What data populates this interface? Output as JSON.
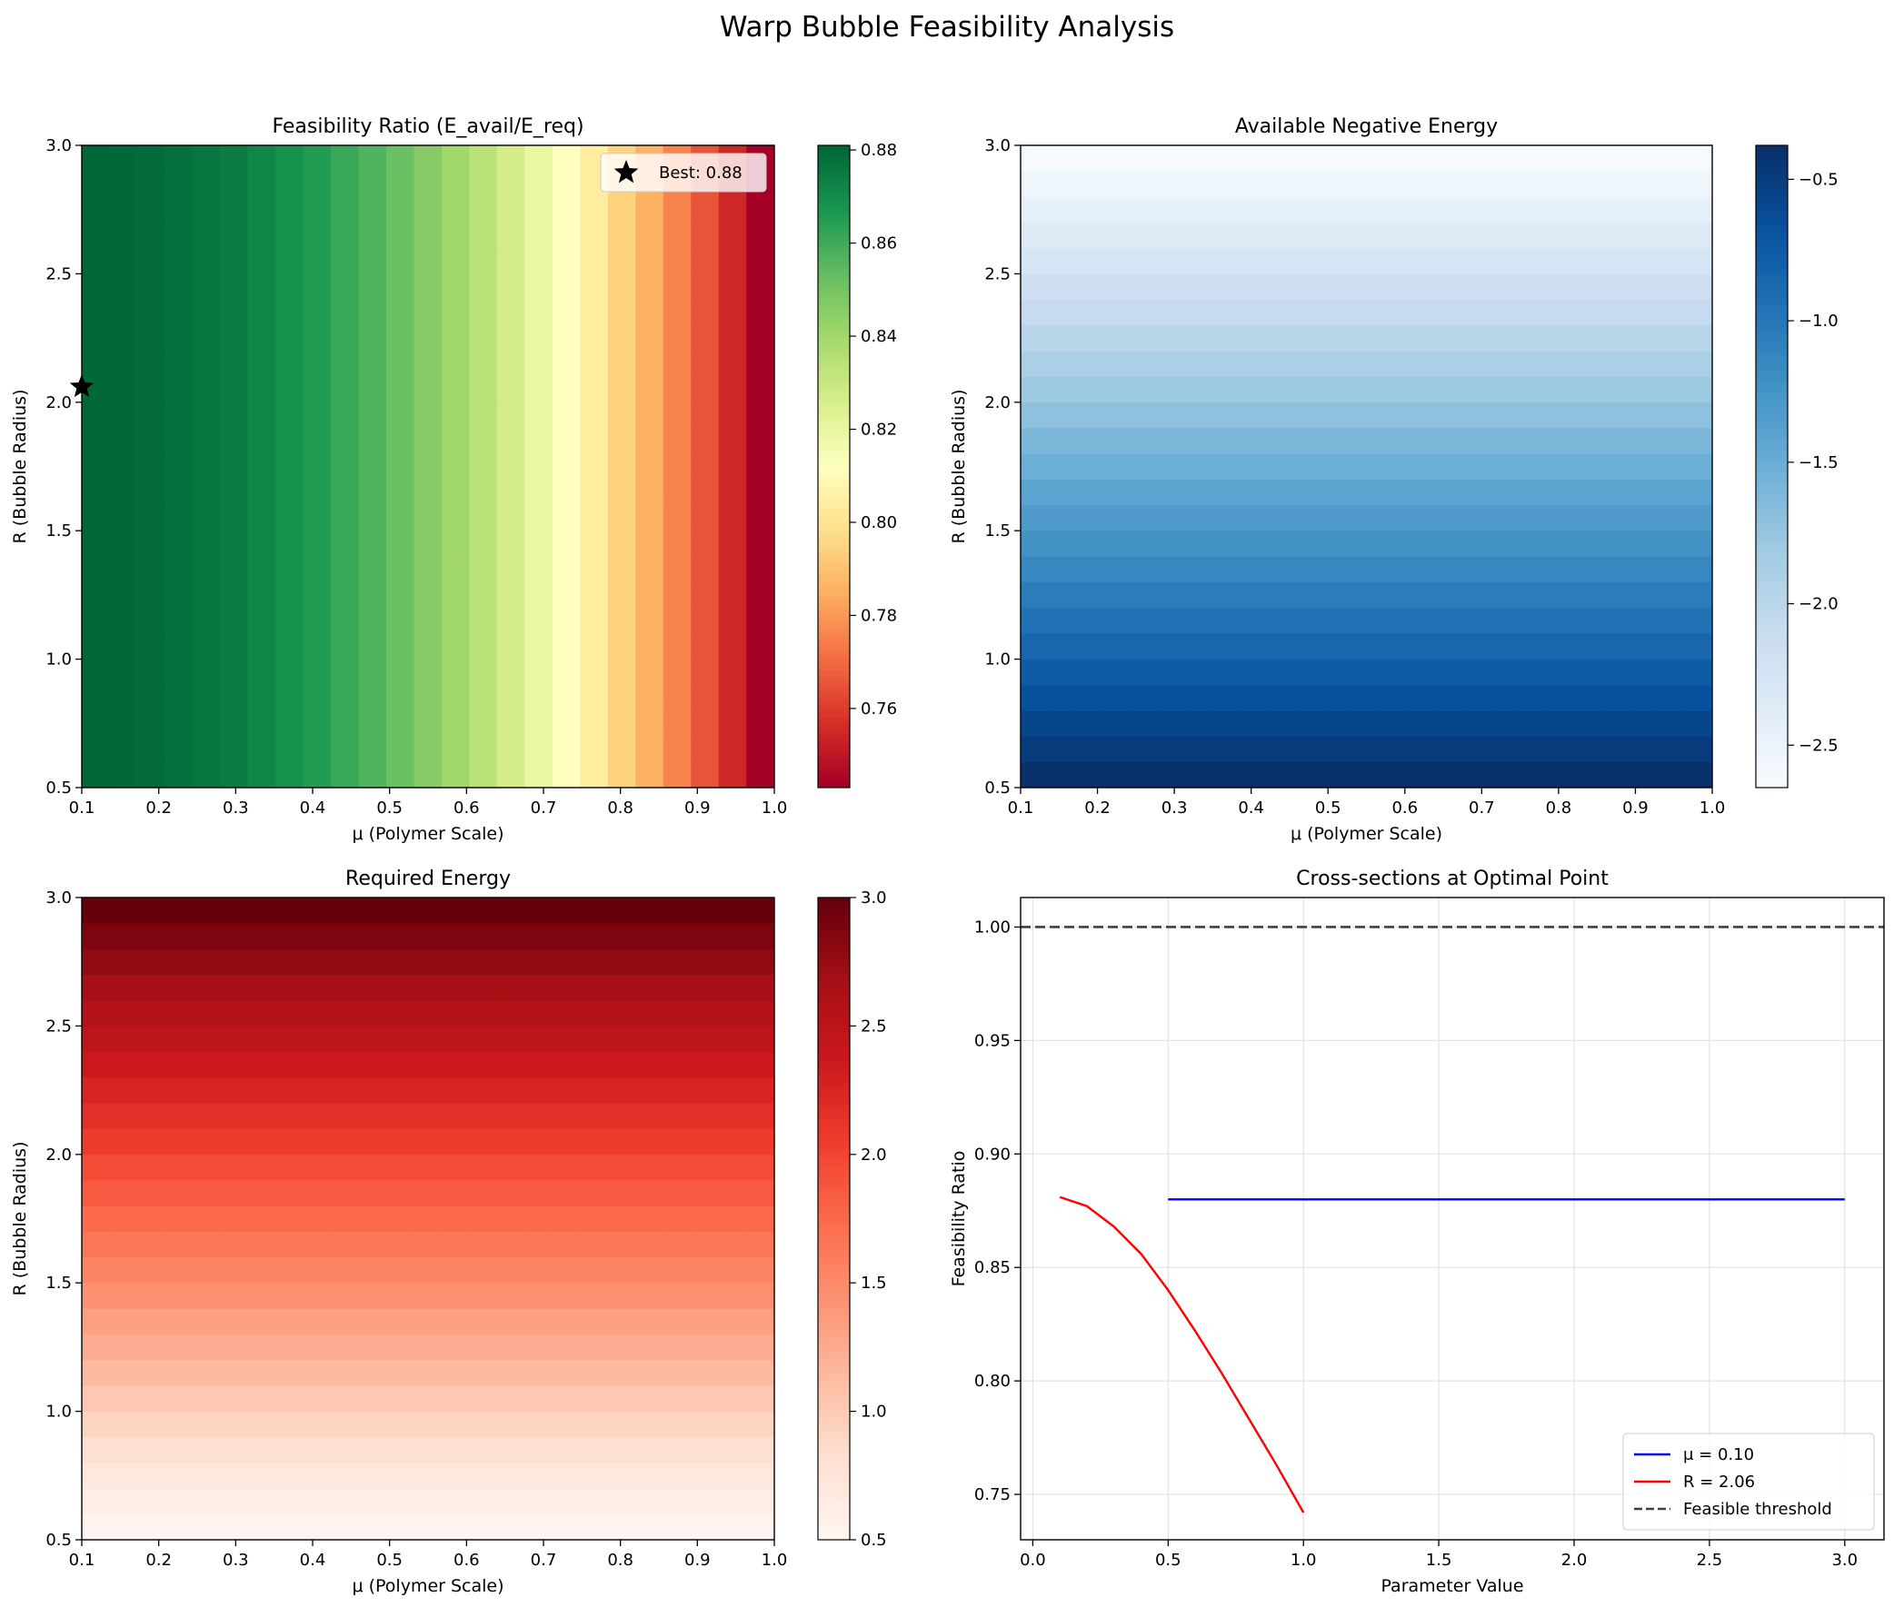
{
  "figure": {
    "suptitle": "Warp Bubble Feasibility Analysis"
  },
  "chart_data": [
    {
      "type": "heatmap",
      "title": "Feasibility Ratio (E_avail/E_req)",
      "xlabel": "μ (Polymer Scale)",
      "ylabel": "R (Bubble Radius)",
      "xlim": [
        0.1,
        1.0
      ],
      "ylim": [
        0.5,
        3.0
      ],
      "xticks": [
        "0.1",
        "0.2",
        "0.3",
        "0.4",
        "0.5",
        "0.6",
        "0.7",
        "0.8",
        "0.9",
        "1.0"
      ],
      "yticks": [
        "0.5",
        "1.0",
        "1.5",
        "2.0",
        "2.5",
        "3.0"
      ],
      "grid_size": [
        25,
        25
      ],
      "varies_along": "x",
      "value_range": [
        0.743,
        0.881
      ],
      "colormap": "RdYlGn",
      "colorbar": {
        "range": [
          0.743,
          0.881
        ],
        "ticks": [
          "0.76",
          "0.78",
          "0.80",
          "0.82",
          "0.84",
          "0.86",
          "0.88"
        ]
      },
      "best_point": {
        "x": 0.1,
        "y": 2.06,
        "label": "Best: 0.88"
      },
      "legend_position": "upper right"
    },
    {
      "type": "heatmap",
      "title": "Available Negative Energy",
      "xlabel": "μ (Polymer Scale)",
      "ylabel": "R (Bubble Radius)",
      "xlim": [
        0.1,
        1.0
      ],
      "ylim": [
        0.5,
        3.0
      ],
      "xticks": [
        "0.1",
        "0.2",
        "0.3",
        "0.4",
        "0.5",
        "0.6",
        "0.7",
        "0.8",
        "0.9",
        "1.0"
      ],
      "yticks": [
        "0.5",
        "1.0",
        "1.5",
        "2.0",
        "2.5",
        "3.0"
      ],
      "grid_size": [
        25,
        25
      ],
      "varies_along": "y",
      "value_range": [
        -2.65,
        -0.38
      ],
      "colormap": "Blues",
      "colorbar": {
        "range": [
          -2.65,
          -0.38
        ],
        "ticks": [
          "−2.5",
          "−2.0",
          "−1.5",
          "−1.0",
          "−0.5"
        ]
      }
    },
    {
      "type": "heatmap",
      "title": "Required Energy",
      "xlabel": "μ (Polymer Scale)",
      "ylabel": "R (Bubble Radius)",
      "xlim": [
        0.1,
        1.0
      ],
      "ylim": [
        0.5,
        3.0
      ],
      "xticks": [
        "0.1",
        "0.2",
        "0.3",
        "0.4",
        "0.5",
        "0.6",
        "0.7",
        "0.8",
        "0.9",
        "1.0"
      ],
      "yticks": [
        "0.5",
        "1.0",
        "1.5",
        "2.0",
        "2.5",
        "3.0"
      ],
      "grid_size": [
        25,
        25
      ],
      "varies_along": "y",
      "value_range": [
        0.5,
        3.0
      ],
      "colormap": "Reds",
      "colorbar": {
        "range": [
          0.5,
          3.0
        ],
        "ticks": [
          "0.5",
          "1.0",
          "1.5",
          "2.0",
          "2.5",
          "3.0"
        ]
      }
    },
    {
      "type": "line",
      "title": "Cross-sections at Optimal Point",
      "xlabel": "Parameter Value",
      "ylabel": "Feasibility Ratio",
      "xlim": [
        -0.045,
        3.145
      ],
      "ylim": [
        0.73,
        1.013
      ],
      "xticks": [
        "0.0",
        "0.5",
        "1.0",
        "1.5",
        "2.0",
        "2.5",
        "3.0"
      ],
      "yticks": [
        "0.75",
        "0.80",
        "0.85",
        "0.90",
        "0.95",
        "1.00"
      ],
      "grid": true,
      "legend_position": "lower right",
      "series": [
        {
          "name": "μ = 0.10",
          "color": "#0000ff",
          "style": "solid",
          "x": [
            0.5,
            3.0
          ],
          "y": [
            0.88,
            0.88
          ]
        },
        {
          "name": "R = 2.06",
          "color": "#ff0000",
          "style": "solid",
          "x": [
            0.1,
            0.2,
            0.3,
            0.4,
            0.5,
            0.6,
            0.7,
            0.8,
            0.9,
            1.0
          ],
          "y": [
            0.881,
            0.877,
            0.868,
            0.856,
            0.84,
            0.822,
            0.803,
            0.783,
            0.763,
            0.742
          ]
        },
        {
          "name": "Feasible threshold",
          "color": "#404040",
          "style": "dashed",
          "x": [
            -0.045,
            3.145
          ],
          "y": [
            1.0,
            1.0
          ]
        }
      ]
    }
  ]
}
